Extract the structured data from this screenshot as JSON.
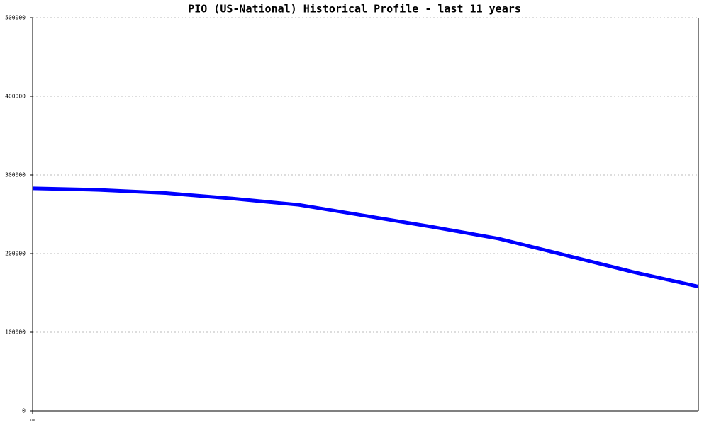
{
  "chart_data": {
    "type": "line",
    "title": "PIO (US-National) Historical Profile - last 11 years",
    "x": [
      0,
      1,
      2,
      3,
      4,
      5,
      6,
      7,
      8,
      9,
      10
    ],
    "series": [
      {
        "name": "PIO",
        "color": "#0000ff",
        "values": [
          283000,
          281000,
          277000,
          270000,
          262000,
          248000,
          234000,
          219000,
          198000,
          177000,
          158000
        ]
      }
    ],
    "xlim": [
      0,
      10
    ],
    "xticks": [
      0
    ],
    "ylim": [
      0,
      500000
    ],
    "yticks": [
      0,
      100000,
      200000,
      300000,
      400000,
      500000
    ],
    "grid": true
  }
}
